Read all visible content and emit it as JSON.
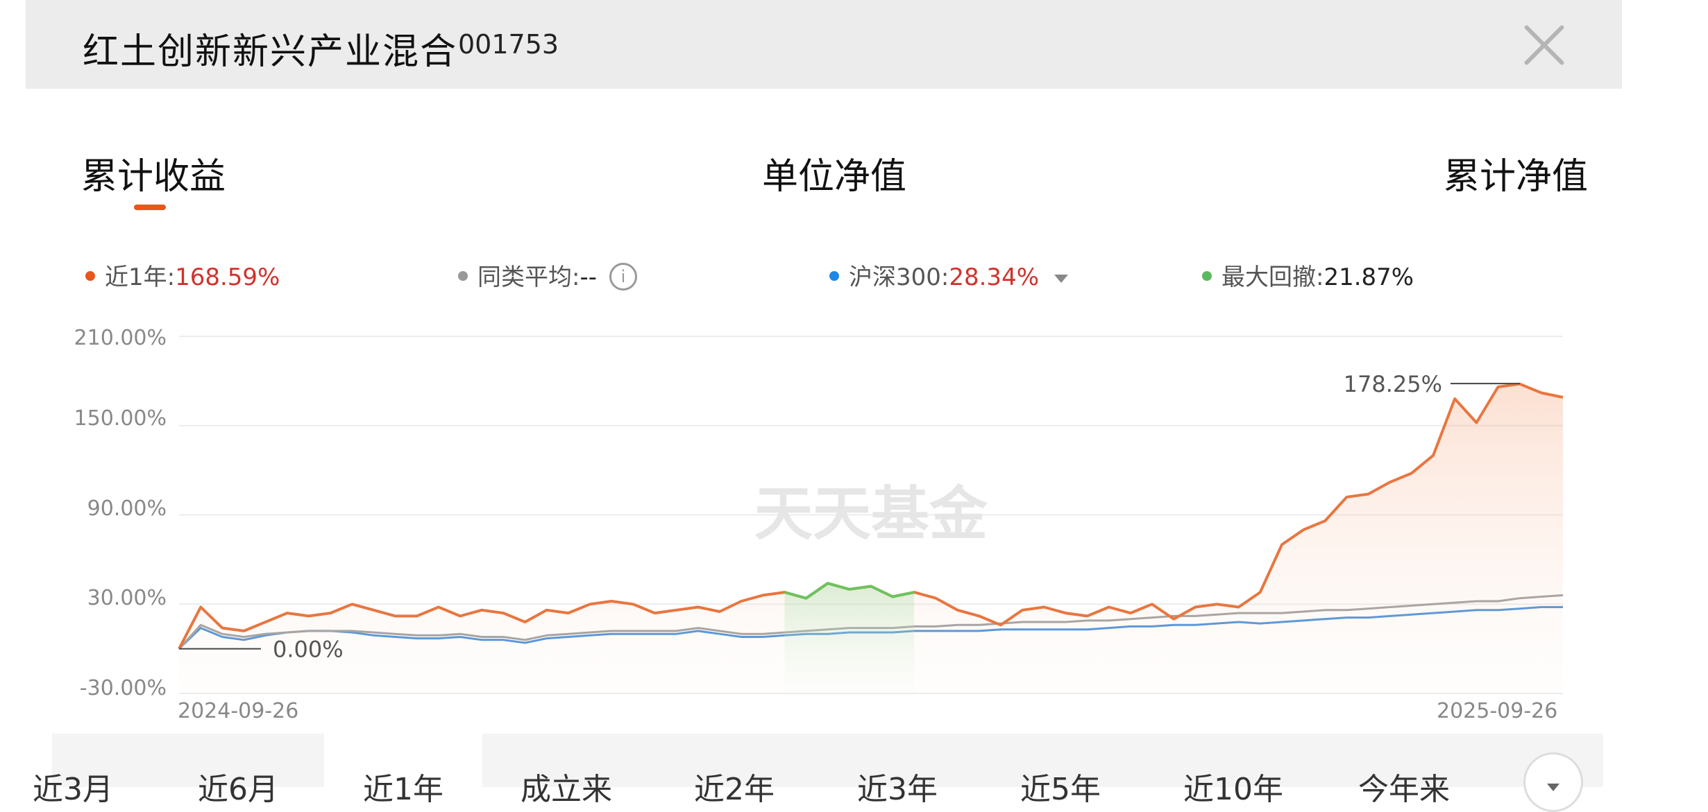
{
  "header": {
    "title": "红土创新新兴产业混合",
    "code": "001753"
  },
  "tabs": [
    {
      "label": "累计收益",
      "active": true
    },
    {
      "label": "单位净值",
      "active": false
    },
    {
      "label": "累计净值",
      "active": false
    }
  ],
  "legend": {
    "fund": {
      "label": "近1年:",
      "value": "168.59%",
      "color": "#e8551d"
    },
    "peer": {
      "label": "同类平均:",
      "value": "--",
      "color": "#999999"
    },
    "index": {
      "label": "沪深300:",
      "value": "28.34%",
      "color": "#1e88e5"
    },
    "drawdown": {
      "label": "最大回撤:",
      "value": "21.87%",
      "color": "#5cb85c"
    }
  },
  "watermark": "天天基金",
  "chart_data": {
    "type": "line",
    "ylim": [
      -30,
      210
    ],
    "yticks": [
      "210.00%",
      "150.00%",
      "90.00%",
      "30.00%",
      "-30.00%"
    ],
    "x_start": "2024-09-26",
    "x_end": "2025-09-26",
    "annotation_max": "178.25%",
    "annotation_start": "0.00%",
    "series": [
      {
        "values": [
          0,
          28,
          14,
          12,
          18,
          24,
          22,
          24,
          30,
          26,
          22,
          22,
          28,
          22,
          26,
          24,
          18,
          26,
          24,
          30,
          32,
          30,
          24,
          26,
          28,
          25,
          32,
          36,
          38,
          34,
          44,
          40,
          42,
          35,
          38,
          34,
          26,
          22,
          16,
          26,
          28,
          24,
          22,
          28,
          24,
          30,
          20,
          28,
          30,
          28,
          38,
          70,
          80,
          86,
          102,
          104,
          112,
          118,
          130,
          168,
          152,
          176,
          178,
          172,
          169
        ],
        "color": "#e8763f"
      },
      {
        "values": [
          0,
          16,
          10,
          8,
          10,
          11,
          12,
          12,
          12,
          11,
          10,
          9,
          9,
          10,
          8,
          8,
          6,
          9,
          10,
          11,
          12,
          12,
          12,
          12,
          14,
          12,
          10,
          10,
          11,
          12,
          13,
          14,
          14,
          14,
          15,
          15,
          16,
          16,
          17,
          18,
          18,
          18,
          19,
          19,
          20,
          21,
          22,
          22,
          23,
          24,
          24,
          24,
          25,
          26,
          26,
          27,
          28,
          29,
          30,
          31,
          32,
          32,
          34,
          35,
          36
        ],
        "color": "#9e9e9e"
      },
      {
        "values": [
          0,
          14,
          8,
          6,
          9,
          11,
          12,
          12,
          11,
          9,
          8,
          7,
          7,
          8,
          6,
          6,
          4,
          7,
          8,
          9,
          10,
          10,
          10,
          10,
          12,
          10,
          8,
          8,
          9,
          10,
          10,
          11,
          11,
          11,
          12,
          12,
          12,
          12,
          13,
          13,
          13,
          13,
          13,
          14,
          15,
          15,
          16,
          16,
          17,
          18,
          17,
          18,
          19,
          20,
          21,
          21,
          22,
          23,
          24,
          25,
          26,
          26,
          27,
          28,
          28
        ],
        "color": "#4a90d9"
      }
    ]
  },
  "periods": [
    "近3月",
    "近6月",
    "近1年",
    "成立来",
    "近2年",
    "近3年",
    "近5年",
    "近10年",
    "今年来"
  ],
  "active_period": "近1年"
}
